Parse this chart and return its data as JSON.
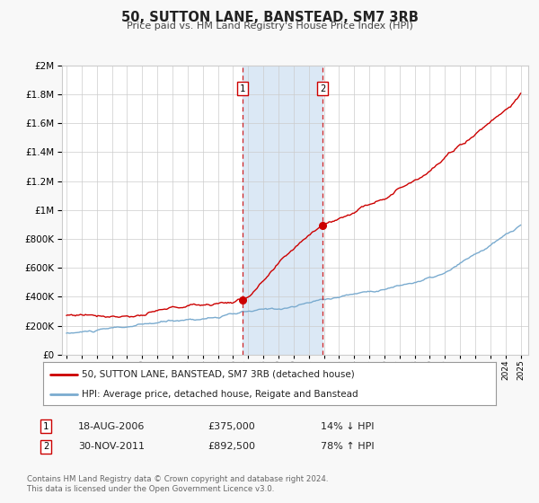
{
  "title": "50, SUTTON LANE, BANSTEAD, SM7 3RB",
  "subtitle": "Price paid vs. HM Land Registry's House Price Index (HPI)",
  "legend_line1": "50, SUTTON LANE, BANSTEAD, SM7 3RB (detached house)",
  "legend_line2": "HPI: Average price, detached house, Reigate and Banstead",
  "red_color": "#cc0000",
  "blue_color": "#7aabcf",
  "background_color": "#f8f8f8",
  "plot_background": "#ffffff",
  "shaded_region_color": "#dbe8f5",
  "grid_color": "#cccccc",
  "ylim": [
    0,
    2000000
  ],
  "yticks": [
    0,
    200000,
    400000,
    600000,
    800000,
    1000000,
    1200000,
    1400000,
    1600000,
    1800000,
    2000000
  ],
  "xlim_start": 1994.7,
  "xlim_end": 2025.5,
  "transaction1_year": 2006.63,
  "transaction1_price": 375000,
  "transaction1_date": "18-AUG-2006",
  "transaction1_pct": "14%",
  "transaction1_dir": "↓",
  "transaction2_year": 2011.92,
  "transaction2_price": 892500,
  "transaction2_date": "30-NOV-2011",
  "transaction2_pct": "78%",
  "transaction2_dir": "↑",
  "footer1": "Contains HM Land Registry data © Crown copyright and database right 2024.",
  "footer2": "This data is licensed under the Open Government Licence v3.0.",
  "hpi_seed_blue": 10,
  "hpi_seed_red": 77,
  "n_points": 361
}
